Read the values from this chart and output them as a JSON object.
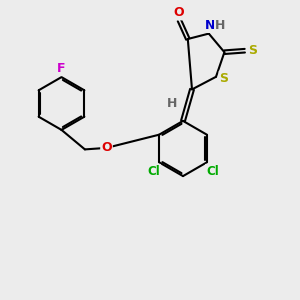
{
  "bg_color": "#ececec",
  "bond_lw": 1.5,
  "double_off": 0.055,
  "fs": 9.0,
  "colors": {
    "F": "#cc00cc",
    "O": "#dd0000",
    "N": "#0000cc",
    "S": "#aaaa00",
    "Cl": "#00aa00",
    "H": "#666666",
    "bond": "#000000"
  },
  "scale": 10
}
